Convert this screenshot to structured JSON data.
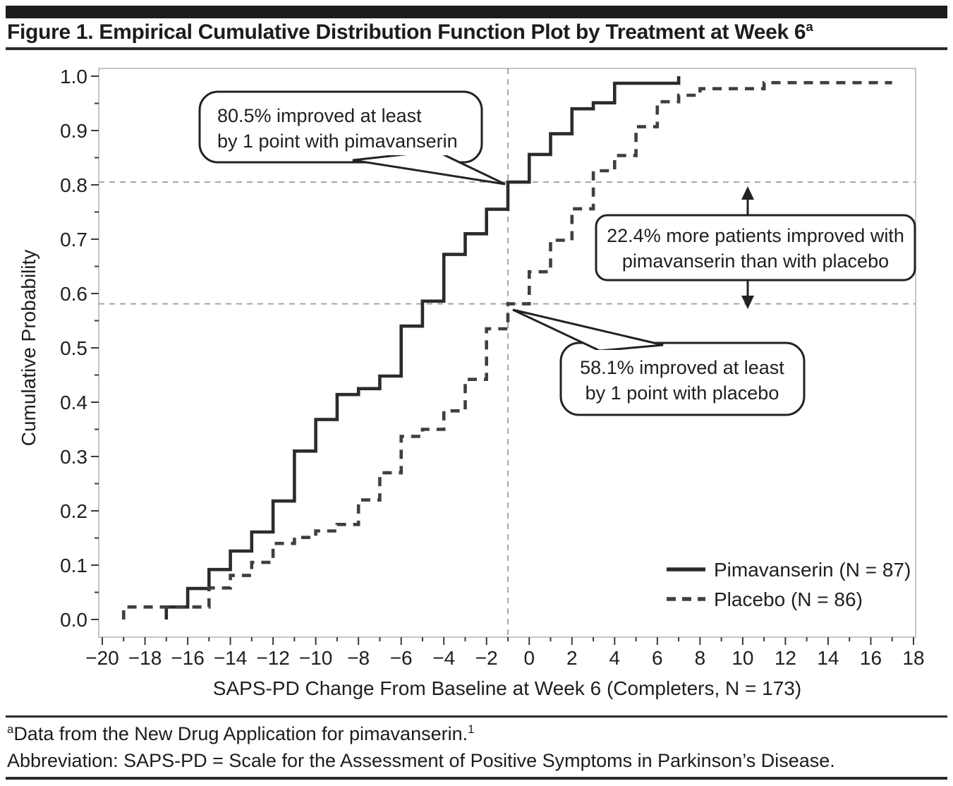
{
  "figure": {
    "title": "Figure 1. Empirical Cumulative Distribution Function Plot by Treatment at Week 6",
    "title_superscript": "a",
    "footnotes": [
      {
        "superscript": "a",
        "text": "Data from the New Drug Application for pimavanserin.",
        "trailing_superscript": "1"
      },
      {
        "superscript": "",
        "text": "Abbreviation: SAPS-PD = Scale for the Assessment of Positive Symptoms in Parkinson’s Disease.",
        "trailing_superscript": ""
      }
    ]
  },
  "colors": {
    "curve_solid": "#2b2b2b",
    "curve_dashed": "#3f3f3f",
    "reference_line": "#9a9a9a",
    "frame": "#b8b8b8",
    "text": "#1f1f1f"
  },
  "chart_data": {
    "type": "line",
    "subtype": "ecdf-step",
    "title": "",
    "xlabel": "SAPS-PD Change From Baseline at Week 6 (Completers, N = 173)",
    "ylabel": "Cumulative Probability",
    "xlim": [
      -20,
      18
    ],
    "ylim": [
      0.0,
      1.0
    ],
    "x_major_ticks": [
      -20,
      -18,
      -16,
      -14,
      -12,
      -10,
      -8,
      -6,
      -4,
      -2,
      0,
      2,
      4,
      6,
      8,
      10,
      12,
      14,
      16,
      18
    ],
    "x_minor_step": 1,
    "y_major_ticks": [
      0.0,
      0.1,
      0.2,
      0.3,
      0.4,
      0.5,
      0.6,
      0.7,
      0.8,
      0.9,
      1.0
    ],
    "y_minor_step": 0.05,
    "grid": false,
    "legend_position": "lower right",
    "series": [
      {
        "name": "Pimavanserin (N = 87)",
        "style": "solid",
        "color": "#2b2b2b",
        "start": [
          -17,
          0
        ],
        "steps": [
          [
            -17,
            0.023
          ],
          [
            -16,
            0.057
          ],
          [
            -15,
            0.092
          ],
          [
            -14,
            0.126
          ],
          [
            -13,
            0.161
          ],
          [
            -12,
            0.218
          ],
          [
            -11,
            0.31
          ],
          [
            -10,
            0.368
          ],
          [
            -9,
            0.414
          ],
          [
            -8,
            0.425
          ],
          [
            -7,
            0.448
          ],
          [
            -6,
            0.54
          ],
          [
            -5,
            0.586
          ],
          [
            -4,
            0.672
          ],
          [
            -3,
            0.71
          ],
          [
            -2,
            0.755
          ],
          [
            -1,
            0.805
          ],
          [
            0,
            0.856
          ],
          [
            1,
            0.894
          ],
          [
            2,
            0.94
          ],
          [
            3,
            0.951
          ],
          [
            4,
            0.987
          ],
          [
            7,
            1.0
          ]
        ],
        "end_x": null
      },
      {
        "name": "Placebo (N = 86)",
        "style": "dashed",
        "color": "#3f3f3f",
        "start": [
          -19,
          0
        ],
        "steps": [
          [
            -19,
            0.023
          ],
          [
            -15,
            0.058
          ],
          [
            -14,
            0.081
          ],
          [
            -13,
            0.105
          ],
          [
            -12,
            0.14
          ],
          [
            -11,
            0.151
          ],
          [
            -10,
            0.163
          ],
          [
            -9,
            0.175
          ],
          [
            -8,
            0.22
          ],
          [
            -7,
            0.27
          ],
          [
            -6,
            0.337
          ],
          [
            -5,
            0.35
          ],
          [
            -4,
            0.384
          ],
          [
            -3,
            0.442
          ],
          [
            -2,
            0.535
          ],
          [
            -1,
            0.581
          ],
          [
            0,
            0.64
          ],
          [
            1,
            0.698
          ],
          [
            2,
            0.756
          ],
          [
            3,
            0.826
          ],
          [
            4,
            0.854
          ],
          [
            5,
            0.907
          ],
          [
            6,
            0.953
          ],
          [
            7,
            0.965
          ],
          [
            8,
            0.977
          ],
          [
            11,
            0.988
          ]
        ],
        "end_x": 17
      }
    ],
    "reference_lines": {
      "horizontal": [
        0.805,
        0.581
      ],
      "vertical": [
        -1
      ]
    },
    "key_values": {
      "pimavanserin_improved_at_least_1_point_pct": 80.5,
      "placebo_improved_at_least_1_point_pct": 58.1,
      "difference_pct": 22.4
    },
    "annotations": [
      {
        "id": "pim",
        "lines": [
          "80.5% improved at least",
          "by 1 point with pimavanserin"
        ],
        "target": [
          -1,
          0.805
        ]
      },
      {
        "id": "diff",
        "lines": [
          "22.4% more patients improved with",
          "pimavanserin than with placebo"
        ]
      },
      {
        "id": "pbo",
        "lines": [
          "58.1% improved at least",
          "by 1 point with placebo"
        ],
        "target": [
          -1,
          0.581
        ]
      }
    ]
  }
}
